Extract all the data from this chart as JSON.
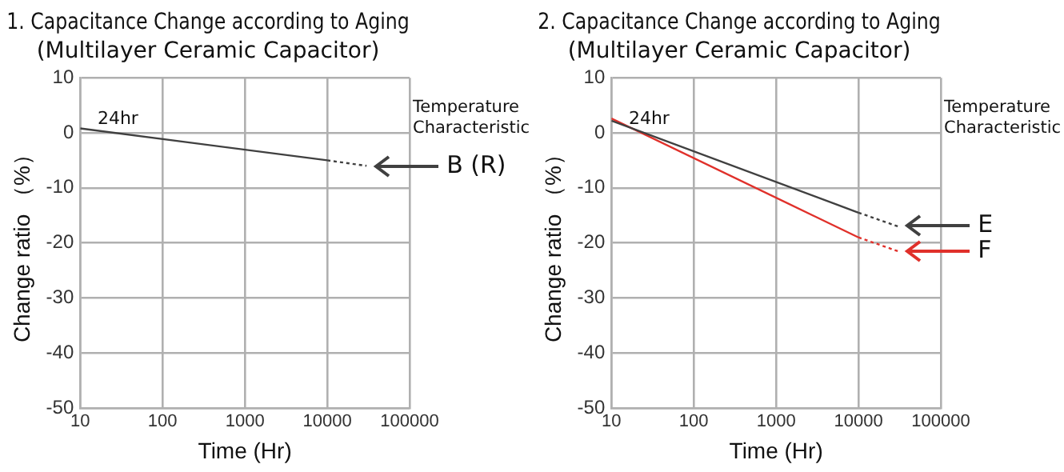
{
  "chart_data": [
    {
      "type": "line",
      "title": "1. Capacitance Change according to Aging",
      "subtitle": "(Multilayer Ceramic Capacitor)",
      "xlabel": "Time (Hr)",
      "ylabel": "Change ratio （%）",
      "series": [
        {
          "color": "#404040",
          "x": [
            10,
            10000
          ],
          "values": [
            0.8,
            -5
          ],
          "line_style": "solid"
        },
        {
          "name": "B (R)",
          "color": "#404040",
          "x": [
            10000,
            30000
          ],
          "values": [
            -5,
            -6
          ],
          "line_style": "dotted"
        }
      ],
      "annotations": [
        {
          "text": "24hr",
          "x": 24,
          "y": 0
        },
        "Temperature Characteristic"
      ],
      "xlim": [
        10,
        100000
      ],
      "xticks": [
        10,
        100,
        1000,
        10000,
        100000
      ],
      "ylim": [
        -50,
        10
      ],
      "yticks": [
        -50,
        -40,
        -30,
        -20,
        -10,
        0,
        10
      ],
      "log": "x",
      "grid": true,
      "marker": "none",
      "legend": "right"
    },
    {
      "type": "line",
      "title": "2. Capacitance Change according to Aging",
      "subtitle": "(Multilayer Ceramic Capacitor)",
      "xlabel": "Time (Hr)",
      "ylabel": "Change ratio （%）",
      "series": [
        {
          "color": "#404040",
          "x": [
            10,
            10000
          ],
          "values": [
            2.2,
            -14.5
          ],
          "line_style": "solid"
        },
        {
          "name": "E",
          "color": "#404040",
          "x": [
            10000,
            30000
          ],
          "values": [
            -14.5,
            -17
          ],
          "line_style": "dotted"
        },
        {
          "color": "#e0302a",
          "x": [
            10,
            10000
          ],
          "values": [
            2.6,
            -19
          ],
          "line_style": "solid"
        },
        {
          "name": "F",
          "color": "#e0302a",
          "x": [
            10000,
            30000
          ],
          "values": [
            -19,
            -21.5
          ],
          "line_style": "dotted"
        }
      ],
      "annotations": [
        {
          "text": "24hr",
          "x": 24,
          "y": 0
        },
        "Temperature Characteristic"
      ],
      "xlim": [
        10,
        100000
      ],
      "xticks": [
        10,
        100,
        1000,
        10000,
        100000
      ],
      "ylim": [
        -50,
        10
      ],
      "yticks": [
        -50,
        -40,
        -30,
        -20,
        -10,
        0,
        10
      ],
      "log": "x",
      "grid": true,
      "marker": "none",
      "legend": "right"
    }
  ]
}
